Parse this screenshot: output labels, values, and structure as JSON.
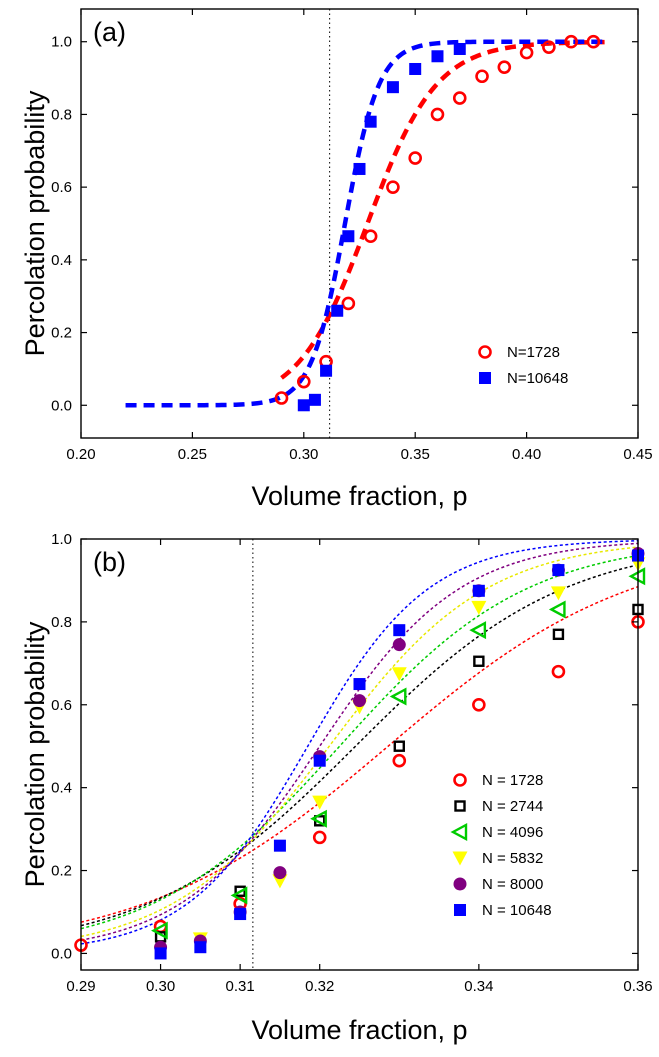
{
  "chart_data": [
    {
      "type": "scatter",
      "panel_label": "(a)",
      "xlabel": "Volume fraction, p",
      "ylabel": "Percolation probability",
      "xlim": [
        0.2,
        0.45
      ],
      "ylim": [
        -0.09,
        1.09
      ],
      "xticks": [
        "0.20",
        "0.25",
        "0.30",
        "0.35",
        "0.40",
        "0.45"
      ],
      "xtick_values": [
        0.2,
        0.25,
        0.3,
        0.35,
        0.4,
        0.45
      ],
      "yticks": [
        "0.0",
        "0.2",
        "0.4",
        "0.6",
        "0.8",
        "1.0"
      ],
      "ytick_values": [
        0.0,
        0.2,
        0.4,
        0.6,
        0.8,
        1.0
      ],
      "critical_line_x": 0.3116,
      "legend_position": "lower-right",
      "series": [
        {
          "name": "N=1728",
          "marker": "open-circle",
          "color": "#ff0000",
          "x": [
            0.29,
            0.3,
            0.31,
            0.32,
            0.33,
            0.34,
            0.35,
            0.36,
            0.37,
            0.38,
            0.39,
            0.4,
            0.41,
            0.42,
            0.43
          ],
          "y": [
            0.02,
            0.065,
            0.12,
            0.28,
            0.465,
            0.6,
            0.68,
            0.8,
            0.845,
            0.905,
            0.93,
            0.97,
            0.985,
            1.0,
            1.0
          ]
        },
        {
          "name": "N=10648",
          "marker": "filled-square",
          "color": "#0000ff",
          "x": [
            0.3,
            0.305,
            0.31,
            0.315,
            0.32,
            0.325,
            0.33,
            0.34,
            0.35,
            0.36,
            0.37
          ],
          "y": [
            0.0,
            0.015,
            0.095,
            0.26,
            0.465,
            0.65,
            0.78,
            0.875,
            0.925,
            0.96,
            0.98
          ]
        }
      ],
      "fits": [
        {
          "color": "#ff0000",
          "x0": 0.3286,
          "width": 0.0154,
          "range": [
            0.29,
            0.435
          ]
        },
        {
          "color": "#0000ff",
          "x0": 0.3185,
          "width": 0.0076,
          "range": [
            0.22,
            0.435
          ]
        }
      ]
    },
    {
      "type": "scatter",
      "panel_label": "(b)",
      "xlabel": "Volume fraction, p",
      "ylabel": "Percolation probability",
      "xlim": [
        0.29,
        0.36
      ],
      "ylim": [
        -0.04,
        1.0
      ],
      "xticks": [
        "0.29",
        "0.30",
        "0.31",
        "0.32",
        "0.34",
        "0.36"
      ],
      "xtick_values": [
        0.29,
        0.3,
        0.31,
        0.32,
        0.34,
        0.36
      ],
      "yticks": [
        "0.0",
        "0.2",
        "0.4",
        "0.6",
        "0.8",
        "1.0"
      ],
      "ytick_values": [
        0.0,
        0.2,
        0.4,
        0.6,
        0.8,
        1.0
      ],
      "critical_line_x": 0.3116,
      "legend_position": "lower-right",
      "series": [
        {
          "name": "N = 1728",
          "marker": "open-circle",
          "color": "#ff0000",
          "x": [
            0.29,
            0.3,
            0.31,
            0.32,
            0.33,
            0.34,
            0.35,
            0.36
          ],
          "y": [
            0.02,
            0.065,
            0.12,
            0.28,
            0.465,
            0.6,
            0.68,
            0.8
          ]
        },
        {
          "name": "N = 2744",
          "marker": "open-square",
          "color": "#000000",
          "x": [
            0.3,
            0.31,
            0.32,
            0.33,
            0.34,
            0.35,
            0.36
          ],
          "y": [
            0.04,
            0.15,
            0.32,
            0.5,
            0.705,
            0.77,
            0.83
          ]
        },
        {
          "name": "N = 4096",
          "marker": "open-triangle-left",
          "color": "#00cc00",
          "x": [
            0.3,
            0.31,
            0.32,
            0.33,
            0.34,
            0.35,
            0.36
          ],
          "y": [
            0.055,
            0.14,
            0.325,
            0.62,
            0.78,
            0.83,
            0.91
          ]
        },
        {
          "name": "N = 5832",
          "marker": "filled-triangle-down",
          "color": "#ffff00",
          "x": [
            0.305,
            0.315,
            0.32,
            0.325,
            0.33,
            0.34,
            0.35,
            0.36
          ],
          "y": [
            0.035,
            0.175,
            0.365,
            0.595,
            0.675,
            0.835,
            0.87,
            0.94
          ]
        },
        {
          "name": "N = 8000",
          "marker": "filled-circle",
          "color": "#800080",
          "x": [
            0.3,
            0.305,
            0.31,
            0.315,
            0.32,
            0.325,
            0.33,
            0.34,
            0.35,
            0.36
          ],
          "y": [
            0.015,
            0.03,
            0.1,
            0.195,
            0.475,
            0.61,
            0.745,
            0.875,
            0.925,
            0.965
          ]
        },
        {
          "name": "N = 10648",
          "marker": "filled-square",
          "color": "#0000ff",
          "x": [
            0.3,
            0.305,
            0.31,
            0.315,
            0.32,
            0.325,
            0.33,
            0.34,
            0.35,
            0.36
          ],
          "y": [
            0.0,
            0.015,
            0.095,
            0.26,
            0.465,
            0.65,
            0.78,
            0.875,
            0.925,
            0.96
          ]
        }
      ],
      "fits": [
        {
          "color": "#ff0000",
          "x0": 0.3286,
          "width": 0.0154,
          "range": [
            0.29,
            0.36
          ]
        },
        {
          "color": "#000000",
          "x0": 0.3245,
          "width": 0.0131,
          "range": [
            0.29,
            0.36
          ]
        },
        {
          "color": "#00cc00",
          "x0": 0.3225,
          "width": 0.0118,
          "range": [
            0.29,
            0.36
          ]
        },
        {
          "color": "#e8e800",
          "x0": 0.3212,
          "width": 0.0099,
          "range": [
            0.29,
            0.36
          ]
        },
        {
          "color": "#800080",
          "x0": 0.32,
          "width": 0.0088,
          "range": [
            0.29,
            0.36
          ]
        },
        {
          "color": "#0000ff",
          "x0": 0.3185,
          "width": 0.0076,
          "range": [
            0.29,
            0.36
          ]
        }
      ]
    }
  ]
}
